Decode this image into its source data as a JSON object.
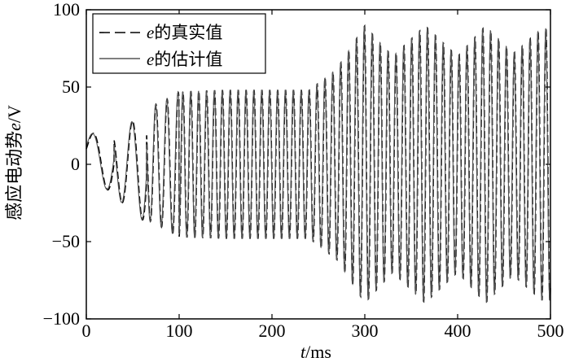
{
  "chart_data": {
    "type": "line",
    "title": "",
    "xlabel_var": "t",
    "xlabel_unit": "/ms",
    "ylabel_text": "感应电动势",
    "ylabel_var": "e",
    "ylabel_unit": "/V",
    "xlim": [
      0,
      500
    ],
    "ylim": [
      -100,
      100
    ],
    "x_ticks": [
      0,
      100,
      200,
      300,
      400,
      500
    ],
    "y_ticks": [
      -100,
      -50,
      0,
      50,
      100
    ],
    "x_tick_labels": [
      "0",
      "100",
      "200",
      "300",
      "400",
      "500"
    ],
    "y_tick_labels": [
      "−100",
      "−50",
      "0",
      "50",
      "100"
    ],
    "grid": false,
    "legend_position": "top-left",
    "series": [
      {
        "name": "e的真实值",
        "name_var": "e",
        "name_text": "的真实值",
        "line_style": "dashed",
        "color": "#000000",
        "envelope_points": [
          [
            0,
            10
          ],
          [
            20,
            -18
          ],
          [
            40,
            24
          ],
          [
            60,
            -35
          ],
          [
            80,
            40
          ],
          [
            100,
            -47
          ],
          [
            150,
            -48
          ],
          [
            200,
            -48
          ],
          [
            240,
            -48
          ],
          [
            270,
            62
          ],
          [
            300,
            90
          ],
          [
            330,
            70
          ],
          [
            365,
            90
          ],
          [
            400,
            70
          ],
          [
            430,
            90
          ],
          [
            460,
            72
          ],
          [
            490,
            88
          ],
          [
            500,
            88
          ]
        ],
        "approx_period_ms": 8.5
      },
      {
        "name": "e的估计值",
        "name_var": "e",
        "name_text": "的估计值",
        "line_style": "solid",
        "color": "#555555",
        "envelope_points": [
          [
            0,
            10
          ],
          [
            20,
            -18
          ],
          [
            40,
            24
          ],
          [
            60,
            -35
          ],
          [
            80,
            40
          ],
          [
            100,
            -47
          ],
          [
            150,
            -48
          ],
          [
            200,
            -48
          ],
          [
            240,
            -48
          ],
          [
            270,
            62
          ],
          [
            300,
            90
          ],
          [
            330,
            70
          ],
          [
            365,
            90
          ],
          [
            400,
            70
          ],
          [
            430,
            90
          ],
          [
            460,
            72
          ],
          [
            490,
            88
          ],
          [
            500,
            88
          ]
        ],
        "approx_period_ms": 8.5
      }
    ]
  }
}
